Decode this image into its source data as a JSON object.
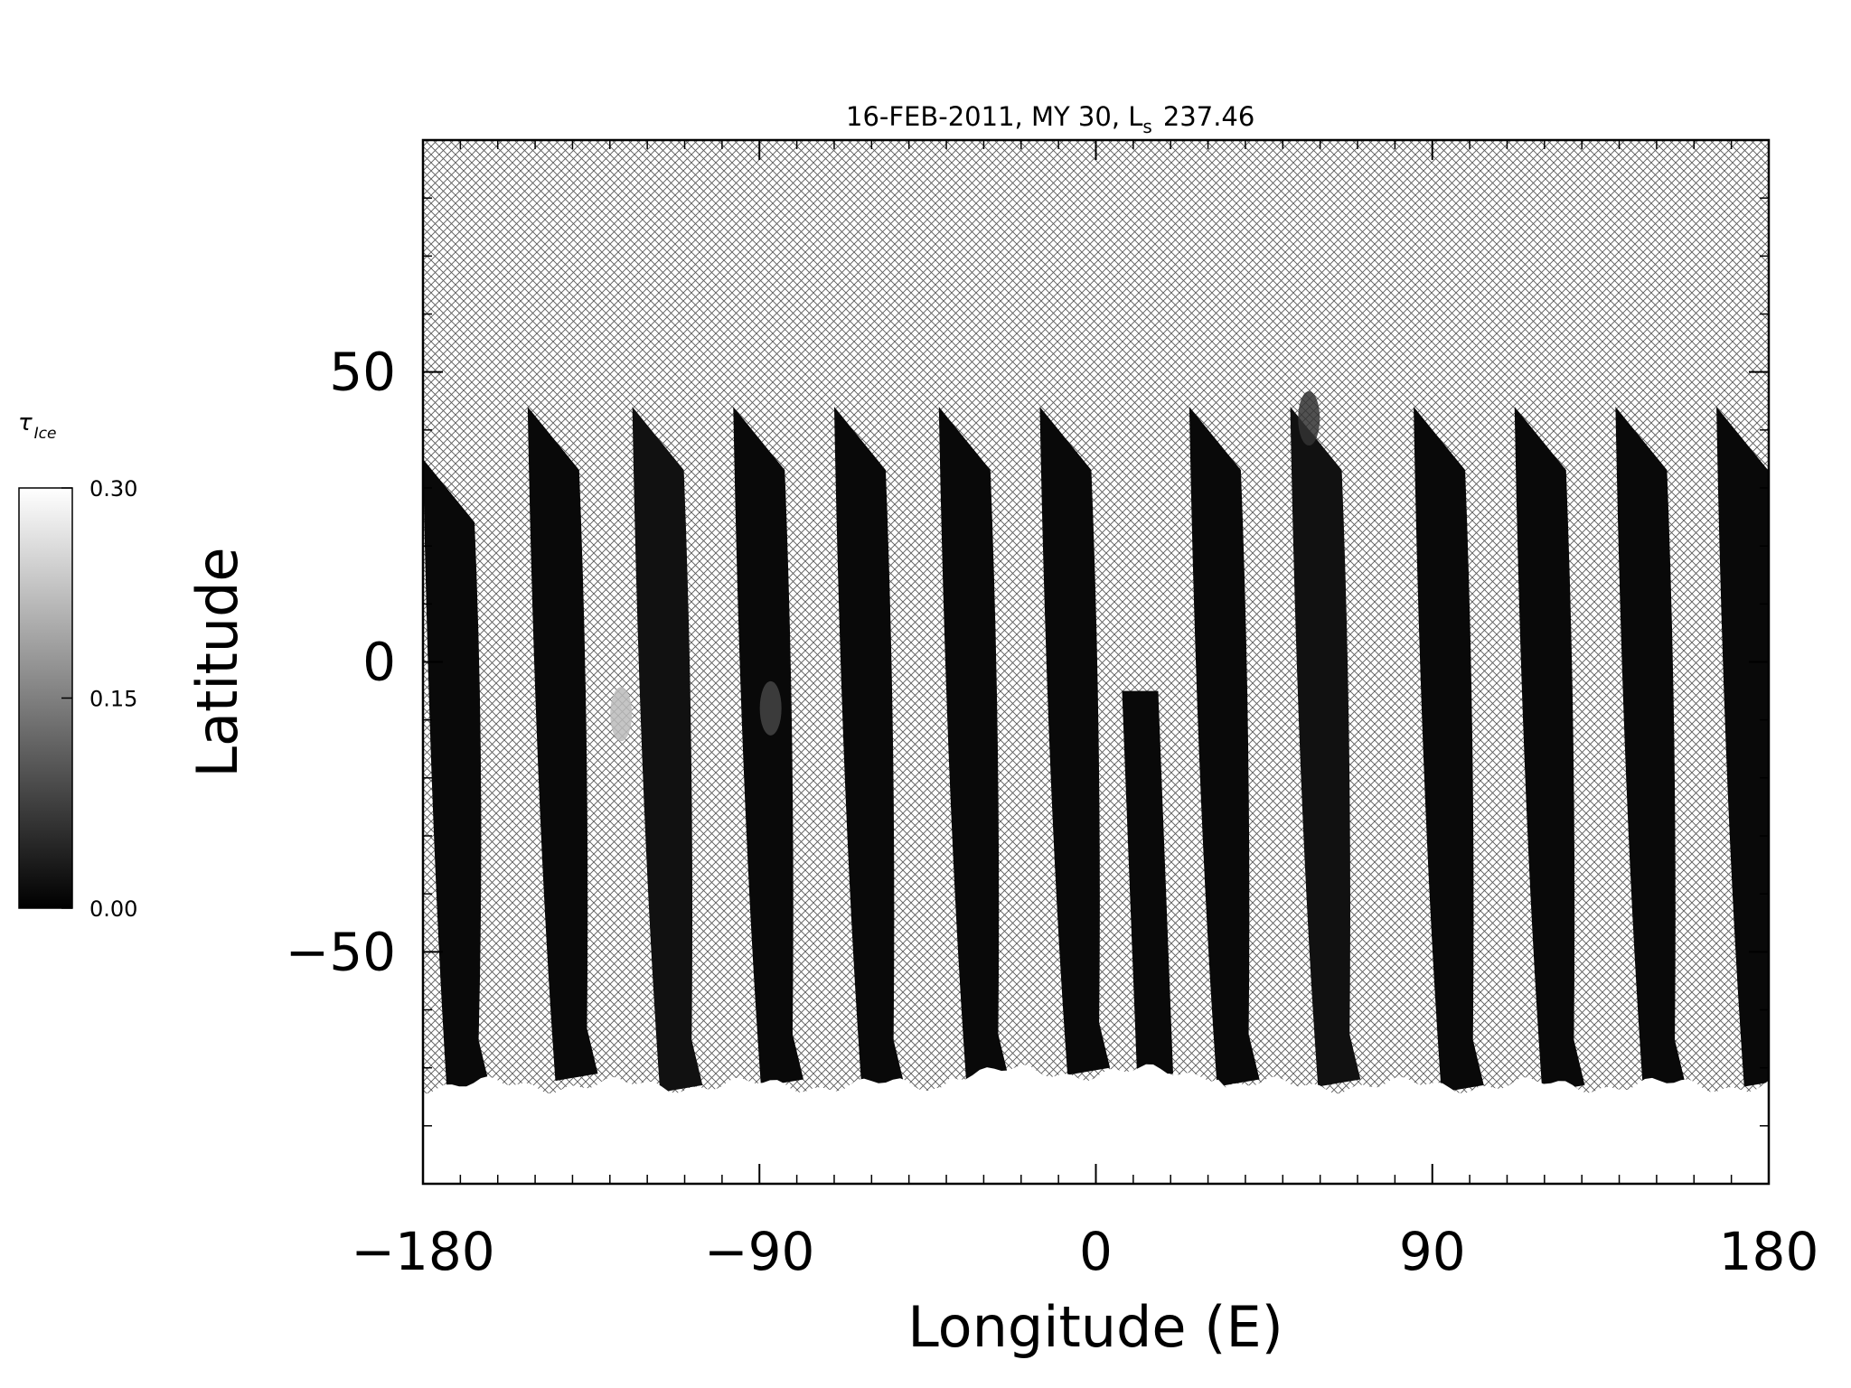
{
  "chart_data": {
    "type": "heatmap",
    "title": "16-FEB-2011, MY 30,  L",
    "title_subscript": "s",
    "title_value": "237.46",
    "xlabel": "Longitude (E)",
    "ylabel": "Latitude",
    "xlim": [
      -180,
      180
    ],
    "ylim": [
      -90,
      90
    ],
    "xticks": [
      -180,
      -90,
      0,
      90,
      180
    ],
    "xtick_labels": [
      "−180",
      "−90",
      "0",
      "90",
      "180"
    ],
    "yticks": [
      -50,
      0,
      50
    ],
    "ytick_labels": [
      "−50",
      "0",
      "50"
    ],
    "colorbar": {
      "symbol": "τ",
      "subscript": "Ice",
      "min": 0.0,
      "max": 0.3,
      "ticks": [
        0.0,
        0.15,
        0.3
      ],
      "tick_labels": [
        "0.00",
        "0.15",
        "0.30"
      ],
      "colors": [
        "#000000",
        "#ffffff"
      ]
    },
    "missing_data_pattern": "crosshatch",
    "polar_cap": {
      "lat_max": -73,
      "value": 0.3
    },
    "swaths": [
      {
        "top_lon": -180,
        "top_lat": 35,
        "bottom_lon": -176,
        "bottom_lat": -73,
        "value": 0.01
      },
      {
        "top_lon": -152,
        "top_lat": 44,
        "bottom_lon": -147,
        "bottom_lat": -71,
        "value": 0.01
      },
      {
        "top_lon": -124,
        "top_lat": 44,
        "bottom_lon": -119,
        "bottom_lat": -73,
        "value": 0.02
      },
      {
        "top_lon": -97,
        "top_lat": 44,
        "bottom_lon": -92,
        "bottom_lat": -72,
        "value": 0.01
      },
      {
        "top_lon": -70,
        "top_lat": 44,
        "bottom_lon": -65,
        "bottom_lat": -73,
        "value": 0.01
      },
      {
        "top_lon": -42,
        "top_lat": 44,
        "bottom_lon": -37,
        "bottom_lat": -72,
        "value": 0.01
      },
      {
        "top_lon": -15,
        "top_lat": 44,
        "bottom_lon": -10,
        "bottom_lat": -70,
        "value": 0.01
      },
      {
        "top_lon": 7,
        "top_lat": -5,
        "bottom_lon": 11,
        "bottom_lat": -71,
        "value": 0.01
      },
      {
        "top_lon": 25,
        "top_lat": 44,
        "bottom_lon": 30,
        "bottom_lat": -72,
        "value": 0.01
      },
      {
        "top_lon": 52,
        "top_lat": 44,
        "bottom_lon": 57,
        "bottom_lat": -72,
        "value": 0.02
      },
      {
        "top_lon": 85,
        "top_lat": 44,
        "bottom_lon": 90,
        "bottom_lat": -73,
        "value": 0.01
      },
      {
        "top_lon": 112,
        "top_lat": 44,
        "bottom_lon": 117,
        "bottom_lat": -73,
        "value": 0.01
      },
      {
        "top_lon": 139,
        "top_lat": 44,
        "bottom_lon": 144,
        "bottom_lat": -73,
        "value": 0.01
      },
      {
        "top_lon": 166,
        "top_lat": 44,
        "bottom_lon": 171,
        "bottom_lat": -72,
        "value": 0.01
      }
    ],
    "bright_patches": [
      {
        "lon": -127,
        "lat": -9,
        "value": 0.22
      },
      {
        "lon": -87,
        "lat": -8,
        "value": 0.08
      },
      {
        "lon": 57,
        "lat": 42,
        "value": 0.06
      }
    ]
  }
}
